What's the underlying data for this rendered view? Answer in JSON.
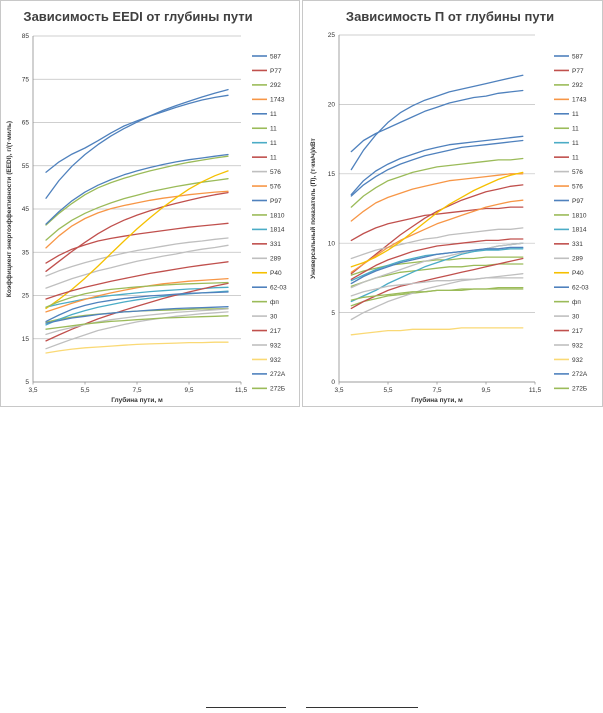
{
  "legend_colors": [
    "#4F81BD",
    "#C0504D",
    "#9BBB59",
    "#F79646",
    "#4BACC6",
    "#8064A2",
    "#2C4D75",
    "#772C2A",
    "#5F7530",
    "#B65708",
    "#276A7C",
    "#4D3B62"
  ],
  "chart_data": [
    {
      "type": "line",
      "title": "Зависимость EEDI от глубины пути",
      "xlabel": "Глубина пути, м",
      "ylabel": "Коэффициент энергоэффективности (EEDI), г/(т∙миль)",
      "xlim": [
        3.5,
        11.5
      ],
      "ylim": [
        5,
        85
      ],
      "x_ticks": [
        "3,5",
        "5,5",
        "7,5",
        "9,5",
        "11,5"
      ],
      "y_ticks": [
        "5",
        "15",
        "25",
        "35",
        "45",
        "55",
        "65",
        "75",
        "85"
      ],
      "legend_position": "right",
      "grid": true,
      "x": [
        4,
        4.5,
        5,
        5.5,
        6,
        6.5,
        7,
        7.5,
        8,
        8.5,
        9,
        9.5,
        10,
        10.5,
        11
      ],
      "series": [
        {
          "name": "587",
          "color": "#4F81BD",
          "values": [
            53.5,
            55.9,
            57.7,
            59.1,
            60.8,
            62.6,
            64.2,
            65.4,
            66.5,
            67.5,
            68.5,
            69.4,
            70.2,
            70.8,
            71.3
          ]
        },
        {
          "name": "P77",
          "color": "#C0504D",
          "values": [
            30.6,
            32.9,
            35.2,
            37.3,
            39.3,
            41,
            42.4,
            43.6,
            44.6,
            45.5,
            46.3,
            47,
            47.7,
            48.3,
            48.8
          ]
        },
        {
          "name": "292",
          "color": "#9BBB59",
          "values": [
            41.3,
            44,
            46.3,
            48.3,
            49.9,
            51.1,
            52.1,
            53,
            53.8,
            54.5,
            55.2,
            55.8,
            56.3,
            56.8,
            57.2
          ]
        },
        {
          "name": "1743",
          "color": "#F79646",
          "values": [
            36,
            38.8,
            41.1,
            42.8,
            44.1,
            45.1,
            45.8,
            46.4,
            47,
            47.5,
            47.9,
            48.3,
            48.6,
            48.9,
            49.1
          ]
        },
        {
          "name": "11",
          "color": "#4F81BD",
          "values": [
            47.5,
            51.6,
            54.9,
            57.6,
            59.9,
            61.9,
            63.6,
            65.1,
            66.5,
            67.8,
            68.9,
            69.9,
            70.9,
            71.8,
            72.6
          ]
        },
        {
          "name": "11",
          "color": "#9BBB59",
          "values": [
            37.8,
            40.4,
            42.4,
            44,
            45.3,
            46.4,
            47.4,
            48.2,
            49,
            49.6,
            50.2,
            50.7,
            51.2,
            51.6,
            52
          ]
        },
        {
          "name": "11",
          "color": "#4BACC6",
          "values": [
            22.3,
            23,
            23.6,
            24.2,
            24.6,
            25,
            25.3,
            25.6,
            25.9,
            26.1,
            26.3,
            26.5,
            26.6,
            26.8,
            26.9
          ]
        },
        {
          "name": "11",
          "color": "#C0504D",
          "values": [
            32.5,
            34.3,
            35.7,
            36.7,
            37.6,
            38.2,
            38.7,
            39.2,
            39.6,
            40,
            40.4,
            40.8,
            41.1,
            41.4,
            41.7
          ]
        },
        {
          "name": "576",
          "color": "#BFBFBF",
          "values": [
            26.7,
            27.8,
            28.9,
            29.8,
            30.7,
            31.4,
            32.2,
            32.9,
            33.5,
            34.1,
            34.6,
            35.2,
            35.7,
            36.1,
            36.6
          ]
        },
        {
          "name": "576",
          "color": "#F79646",
          "values": [
            21.2,
            22.2,
            23.2,
            24.1,
            24.9,
            25.6,
            26.2,
            26.8,
            27.3,
            27.7,
            28,
            28.3,
            28.5,
            28.7,
            28.9
          ]
        },
        {
          "name": "P97",
          "color": "#4F81BD",
          "values": [
            41.5,
            44.4,
            46.9,
            48.9,
            50.5,
            51.8,
            52.9,
            53.8,
            54.6,
            55.3,
            55.9,
            56.4,
            56.8,
            57.2,
            57.6
          ]
        },
        {
          "name": "1810",
          "color": "#9BBB59",
          "values": [
            18.8,
            19.5,
            20,
            20.4,
            20.7,
            20.9,
            21.2,
            21.4,
            21.5,
            21.6,
            21.7,
            21.8,
            21.9,
            21.9,
            22
          ]
        },
        {
          "name": "1814",
          "color": "#4BACC6",
          "values": [
            18.2,
            19.5,
            20.6,
            21.5,
            22.3,
            22.9,
            23.5,
            24,
            24.4,
            24.8,
            25.1,
            25.4,
            25.6,
            25.8,
            26
          ]
        },
        {
          "name": "331",
          "color": "#C0504D",
          "values": [
            14.5,
            15.9,
            17.2,
            18.4,
            19.6,
            20.6,
            21.6,
            22.5,
            23.4,
            24.3,
            25.1,
            25.8,
            26.5,
            27.2,
            27.8
          ]
        },
        {
          "name": "289",
          "color": "#BFBFBF",
          "values": [
            29.5,
            30.7,
            31.7,
            32.6,
            33.4,
            34.1,
            34.8,
            35.4,
            35.9,
            36.4,
            36.9,
            37.3,
            37.6,
            38,
            38.3
          ]
        },
        {
          "name": "P40",
          "color": "#F5C000",
          "values": [
            22,
            24.1,
            26.4,
            29,
            31.8,
            34.7,
            37.6,
            40.4,
            43,
            45.4,
            47.6,
            49.6,
            51.3,
            52.7,
            53.8
          ]
        },
        {
          "name": "62-03",
          "color": "#4F81BD",
          "values": [
            19,
            20.5,
            21.8,
            22.7,
            23.4,
            23.9,
            24.3,
            24.6,
            24.9,
            25.1,
            25.3,
            25.5,
            25.6,
            25.7,
            25.8
          ]
        },
        {
          "name": "фп",
          "color": "#9BBB59",
          "values": [
            22.3,
            23.6,
            24.6,
            25.4,
            26,
            26.4,
            26.7,
            27,
            27.2,
            27.4,
            27.6,
            27.7,
            27.8,
            27.9,
            28
          ]
        },
        {
          "name": "30",
          "color": "#BFBFBF",
          "values": [
            16,
            16.9,
            17.6,
            18.3,
            18.9,
            19.4,
            19.8,
            20.2,
            20.5,
            20.8,
            21.1,
            21.3,
            21.5,
            21.7,
            21.9
          ]
        },
        {
          "name": "217",
          "color": "#C0504D",
          "values": [
            24.2,
            25.2,
            26.1,
            26.9,
            27.6,
            28.3,
            28.9,
            29.5,
            30.1,
            30.6,
            31.1,
            31.6,
            32,
            32.4,
            32.8
          ]
        },
        {
          "name": "932",
          "color": "#BFBFBF",
          "values": [
            12.7,
            13.8,
            14.9,
            15.9,
            16.9,
            17.6,
            18.3,
            18.9,
            19.4,
            19.8,
            20.2,
            20.5,
            20.8,
            21,
            21.2
          ]
        },
        {
          "name": "932",
          "color": "#FAD975",
          "values": [
            11.7,
            12.2,
            12.6,
            12.9,
            13.1,
            13.3,
            13.5,
            13.7,
            13.8,
            13.9,
            14,
            14.1,
            14.1,
            14.2,
            14.2
          ]
        },
        {
          "name": "272А",
          "color": "#4F81BD",
          "values": [
            18.6,
            19.2,
            19.8,
            20.2,
            20.6,
            20.9,
            21.2,
            21.4,
            21.6,
            21.8,
            22,
            22.1,
            22.2,
            22.3,
            22.4
          ]
        },
        {
          "name": "272Б",
          "color": "#9BBB59",
          "values": [
            17.2,
            17.6,
            18,
            18.4,
            18.7,
            19,
            19.2,
            19.4,
            19.6,
            19.8,
            19.9,
            20,
            20.1,
            20.2,
            20.3
          ]
        }
      ]
    },
    {
      "type": "line",
      "title": "Зависимость П от глубины пути",
      "xlabel": "Глубина пути, м",
      "ylabel": "Универсальный показатель (П), (т∙км/ч)/кВт",
      "xlim": [
        3.5,
        11.5
      ],
      "ylim": [
        0,
        25
      ],
      "x_ticks": [
        "3,5",
        "5,5",
        "7,5",
        "9,5",
        "11,5"
      ],
      "y_ticks": [
        "0",
        "5",
        "10",
        "15",
        "20",
        "25"
      ],
      "legend_position": "right",
      "grid": true,
      "x": [
        4,
        4.5,
        5,
        5.5,
        6,
        6.5,
        7,
        7.5,
        8,
        8.5,
        9,
        9.5,
        10,
        10.5,
        11
      ],
      "series": [
        {
          "name": "587",
          "color": "#4F81BD",
          "values": [
            16.6,
            17.4,
            17.9,
            18.3,
            18.7,
            19.1,
            19.5,
            19.8,
            20.1,
            20.3,
            20.5,
            20.6,
            20.8,
            20.9,
            21
          ]
        },
        {
          "name": "P77",
          "color": "#C0504D",
          "values": [
            10.2,
            10.7,
            11.1,
            11.4,
            11.6,
            11.8,
            12,
            12.1,
            12.2,
            12.3,
            12.4,
            12.5,
            12.5,
            12.6,
            12.6
          ]
        },
        {
          "name": "292",
          "color": "#9BBB59",
          "values": [
            12.6,
            13.4,
            14,
            14.5,
            14.8,
            15.1,
            15.3,
            15.5,
            15.6,
            15.7,
            15.8,
            15.9,
            16,
            16,
            16.1
          ]
        },
        {
          "name": "1743",
          "color": "#F79646",
          "values": [
            11.6,
            12.3,
            12.9,
            13.3,
            13.6,
            13.9,
            14.1,
            14.3,
            14.5,
            14.6,
            14.7,
            14.8,
            14.9,
            15,
            15
          ]
        },
        {
          "name": "11",
          "color": "#4F81BD",
          "values": [
            15.3,
            16.7,
            17.8,
            18.7,
            19.4,
            19.9,
            20.3,
            20.6,
            20.9,
            21.1,
            21.3,
            21.5,
            21.7,
            21.9,
            22.1
          ]
        },
        {
          "name": "11",
          "color": "#9BBB59",
          "values": [
            7.7,
            8,
            8.2,
            8.4,
            8.5,
            8.6,
            8.7,
            8.8,
            8.8,
            8.9,
            8.9,
            9,
            9,
            9,
            9
          ]
        },
        {
          "name": "11",
          "color": "#4BACC6",
          "values": [
            7.3,
            7.7,
            8.1,
            8.4,
            8.7,
            8.9,
            9.1,
            9.2,
            9.3,
            9.4,
            9.4,
            9.5,
            9.5,
            9.6,
            9.6
          ]
        },
        {
          "name": "11",
          "color": "#C0504D",
          "values": [
            7.8,
            8.5,
            9.2,
            9.9,
            10.6,
            11.2,
            11.8,
            12.3,
            12.7,
            13.1,
            13.4,
            13.7,
            13.9,
            14.1,
            14.2
          ]
        },
        {
          "name": "576",
          "color": "#BFBFBF",
          "values": [
            8.9,
            9.2,
            9.5,
            9.7,
            9.9,
            10.1,
            10.3,
            10.4,
            10.6,
            10.7,
            10.8,
            10.9,
            11,
            11,
            11.1
          ]
        },
        {
          "name": "576",
          "color": "#F79646",
          "values": [
            7.9,
            8.5,
            9.1,
            9.7,
            10.2,
            10.6,
            11,
            11.4,
            11.7,
            12,
            12.3,
            12.6,
            12.8,
            13,
            13.1
          ]
        },
        {
          "name": "P97",
          "color": "#4F81BD",
          "values": [
            13.4,
            14.2,
            14.8,
            15.3,
            15.7,
            16,
            16.3,
            16.5,
            16.7,
            16.9,
            17,
            17.1,
            17.2,
            17.3,
            17.4
          ]
        },
        {
          "name": "1810",
          "color": "#9BBB59",
          "values": [
            6.9,
            7.2,
            7.5,
            7.7,
            7.9,
            8,
            8.1,
            8.2,
            8.3,
            8.3,
            8.4,
            8.4,
            8.5,
            8.5,
            8.5
          ]
        },
        {
          "name": "1814",
          "color": "#4BACC6",
          "values": [
            5.8,
            6.2,
            6.6,
            7.1,
            7.5,
            7.9,
            8.3,
            8.6,
            8.9,
            9.2,
            9.4,
            9.6,
            9.8,
            9.9,
            10
          ]
        },
        {
          "name": "331",
          "color": "#C0504D",
          "values": [
            7.4,
            7.9,
            8.4,
            8.8,
            9.1,
            9.4,
            9.6,
            9.8,
            9.9,
            10,
            10.1,
            10.2,
            10.2,
            10.3,
            10.3
          ]
        },
        {
          "name": "289",
          "color": "#BFBFBF",
          "values": [
            6.8,
            7.2,
            7.5,
            7.8,
            8.1,
            8.4,
            8.7,
            8.9,
            9.1,
            9.3,
            9.5,
            9.6,
            9.8,
            9.9,
            10
          ]
        },
        {
          "name": "P40",
          "color": "#F5C000",
          "values": [
            8.3,
            8.6,
            9,
            9.5,
            10.1,
            10.8,
            11.5,
            12.2,
            12.8,
            13.3,
            13.8,
            14.2,
            14.6,
            14.9,
            15.1
          ]
        },
        {
          "name": "62-03",
          "color": "#4F81BD",
          "values": [
            7.1,
            7.6,
            8,
            8.3,
            8.6,
            8.8,
            9,
            9.2,
            9.3,
            9.4,
            9.5,
            9.6,
            9.6,
            9.7,
            9.7
          ]
        },
        {
          "name": "фп",
          "color": "#9BBB59",
          "values": [
            5.5,
            5.8,
            6,
            6.2,
            6.3,
            6.4,
            6.5,
            6.6,
            6.6,
            6.7,
            6.7,
            6.7,
            6.8,
            6.8,
            6.8
          ]
        },
        {
          "name": "30",
          "color": "#BFBFBF",
          "values": [
            4.5,
            5,
            5.4,
            5.8,
            6.1,
            6.4,
            6.7,
            6.9,
            7.1,
            7.3,
            7.4,
            7.5,
            7.6,
            7.7,
            7.8
          ]
        },
        {
          "name": "217",
          "color": "#C0504D",
          "values": [
            5.3,
            5.8,
            6.2,
            6.6,
            6.9,
            7.1,
            7.3,
            7.5,
            7.7,
            7.9,
            8.1,
            8.3,
            8.5,
            8.7,
            8.9
          ]
        },
        {
          "name": "932",
          "color": "#BFBFBF",
          "values": [
            6.2,
            6.5,
            6.7,
            6.9,
            7,
            7.1,
            7.2,
            7.3,
            7.3,
            7.4,
            7.4,
            7.5,
            7.5,
            7.5,
            7.5
          ]
        },
        {
          "name": "932",
          "color": "#FAD975",
          "values": [
            3.4,
            3.5,
            3.6,
            3.7,
            3.7,
            3.8,
            3.8,
            3.8,
            3.8,
            3.9,
            3.9,
            3.9,
            3.9,
            3.9,
            3.9
          ]
        },
        {
          "name": "272А",
          "color": "#4F81BD",
          "values": [
            13.5,
            14.5,
            15.2,
            15.7,
            16.1,
            16.4,
            16.7,
            16.9,
            17.1,
            17.2,
            17.3,
            17.4,
            17.5,
            17.6,
            17.7
          ]
        },
        {
          "name": "272Б",
          "color": "#9BBB59",
          "values": [
            5.9,
            6.1,
            6.2,
            6.3,
            6.4,
            6.5,
            6.5,
            6.6,
            6.6,
            6.6,
            6.7,
            6.7,
            6.7,
            6.7,
            6.7
          ]
        }
      ]
    }
  ]
}
